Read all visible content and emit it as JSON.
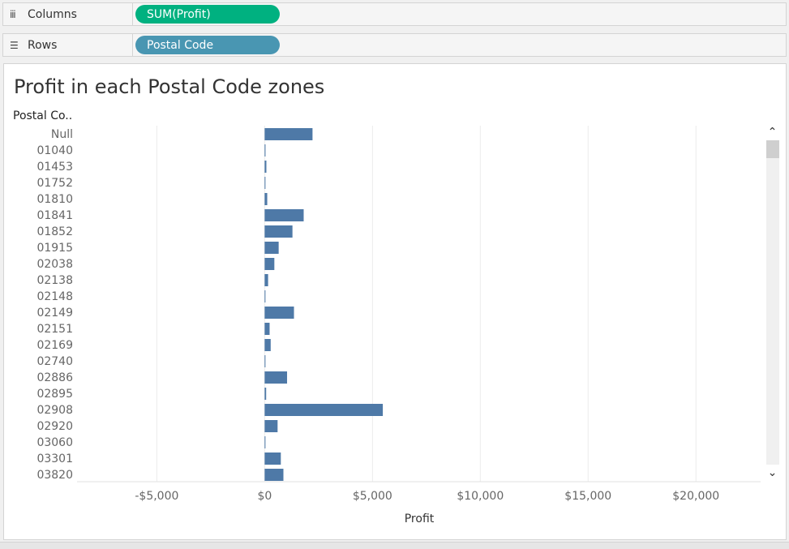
{
  "shelves": {
    "columns": {
      "label": "Columns",
      "icon": "columns-icon",
      "pill": "SUM(Profit)",
      "pill_color": "#00b180"
    },
    "rows": {
      "label": "Rows",
      "icon": "rows-icon",
      "pill": "Postal Code",
      "pill_color": "#4996b2"
    }
  },
  "chart_data": {
    "type": "bar",
    "orientation": "horizontal",
    "title": "Profit in each Postal Code zones",
    "row_header": "Postal Co..",
    "xlabel": "Profit",
    "xlim": [
      -8700,
      23000
    ],
    "x_ticks": [
      -5000,
      0,
      5000,
      10000,
      15000,
      20000
    ],
    "x_tick_labels": [
      "-$5,000",
      "$0",
      "$5,000",
      "$10,000",
      "$15,000",
      "$20,000"
    ],
    "grid": true,
    "bar_color": "#4e79a7",
    "categories": [
      "Null",
      "01040",
      "01453",
      "01752",
      "01810",
      "01841",
      "01852",
      "01915",
      "02038",
      "02138",
      "02148",
      "02149",
      "02151",
      "02169",
      "02740",
      "02886",
      "02895",
      "02908",
      "02920",
      "03060",
      "03301",
      "03820"
    ],
    "values": [
      2220,
      40,
      80,
      30,
      120,
      1810,
      1290,
      650,
      450,
      160,
      30,
      1360,
      230,
      280,
      20,
      1040,
      70,
      5480,
      600,
      30,
      750,
      870
    ]
  },
  "scrollbar": {
    "up": "⌃",
    "down": "⌄"
  }
}
